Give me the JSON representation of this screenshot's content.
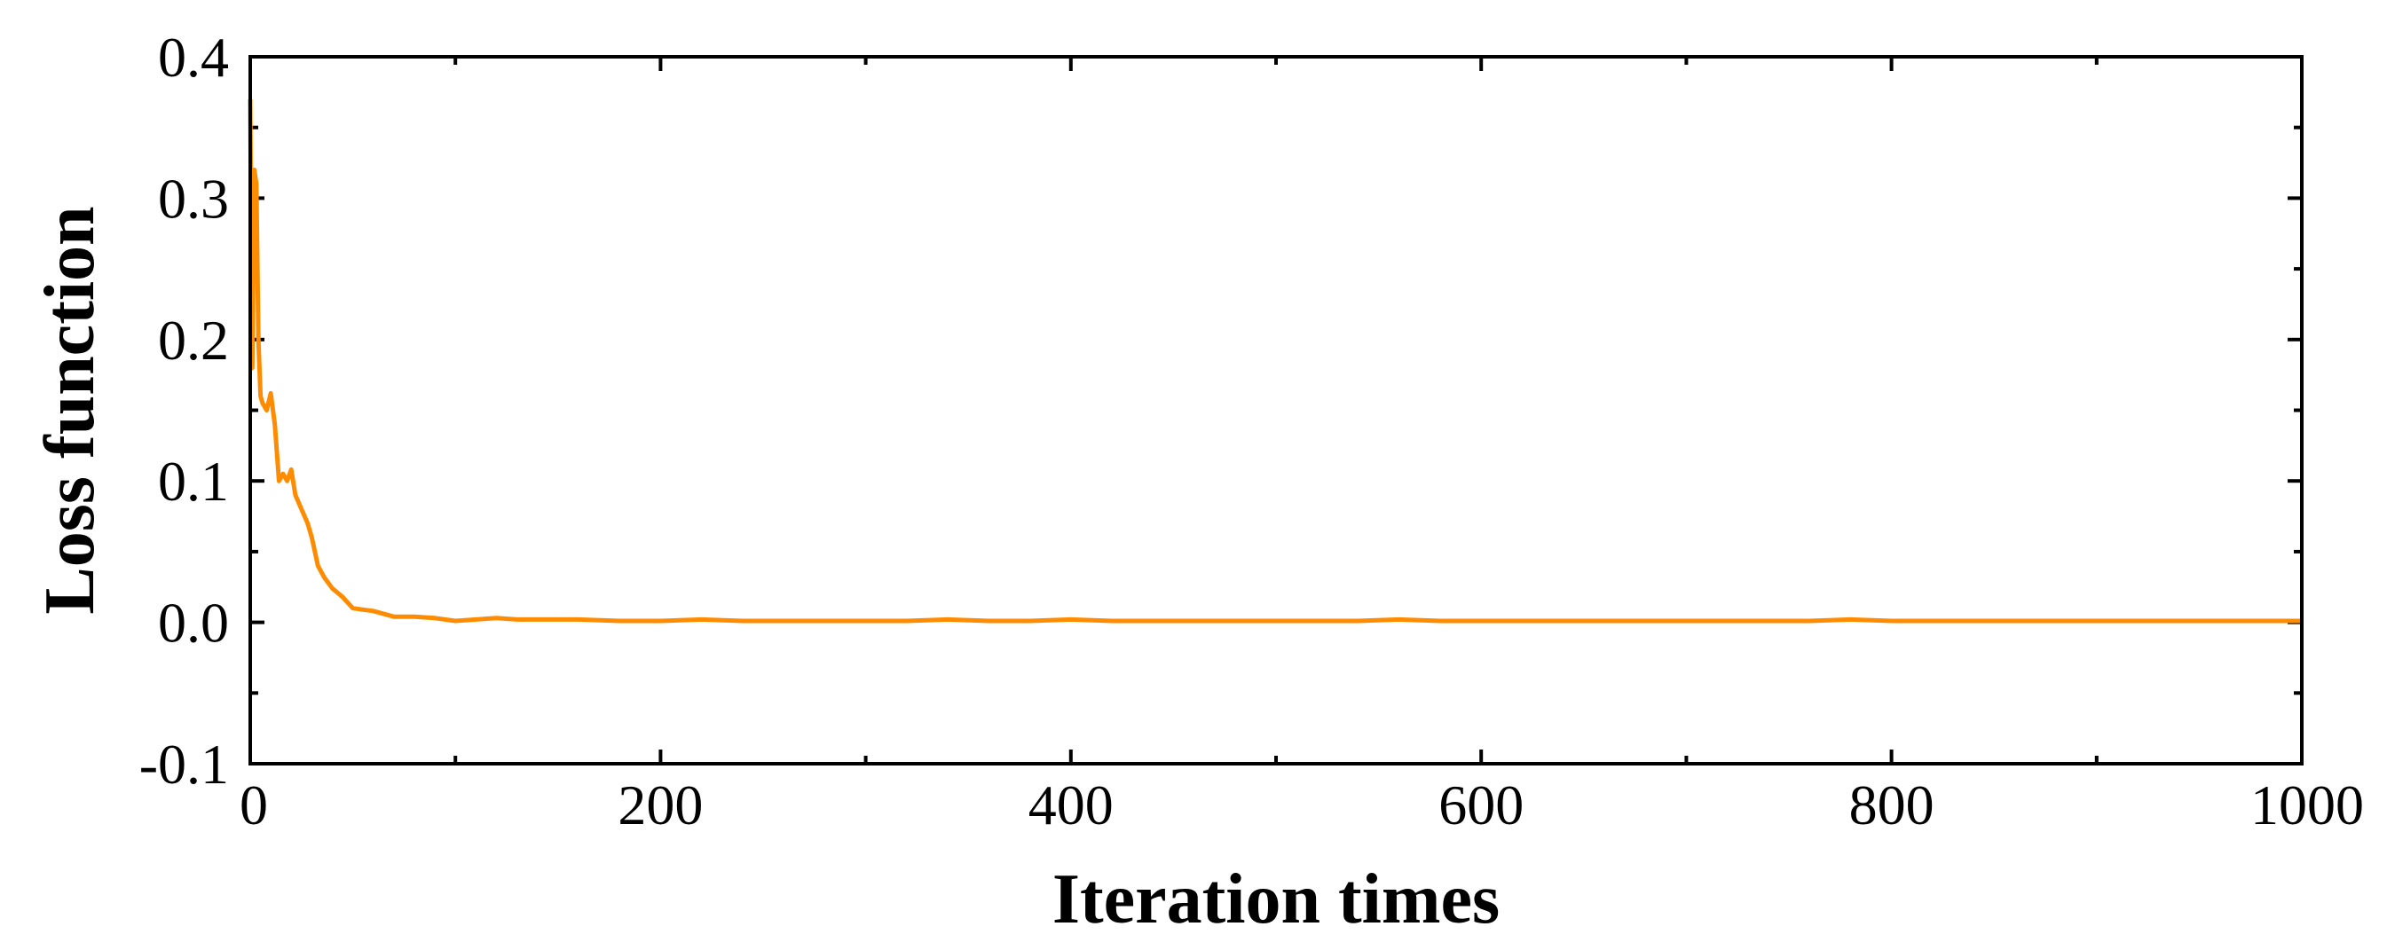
{
  "chart_data": {
    "type": "line",
    "title": "",
    "xlabel": "Iteration times",
    "ylabel": "Loss function",
    "xlim": [
      0,
      1000
    ],
    "ylim": [
      -0.1,
      0.4
    ],
    "xticks": [
      0,
      200,
      400,
      600,
      800,
      1000
    ],
    "xtick_labels": [
      "0",
      "200",
      "400",
      "600",
      "800",
      "1000"
    ],
    "yticks": [
      -0.1,
      0.0,
      0.1,
      0.2,
      0.3,
      0.4
    ],
    "ytick_labels": [
      "-0.1",
      "0.0",
      "0.1",
      "0.2",
      "0.3",
      "0.4"
    ],
    "grid": false,
    "legend": "none",
    "series": [
      {
        "color": "#FF8C00",
        "x": [
          0,
          1,
          2,
          3,
          4,
          5,
          6,
          8,
          10,
          12,
          14,
          16,
          18,
          20,
          22,
          25,
          28,
          30,
          33,
          36,
          40,
          45,
          50,
          55,
          60,
          70,
          80,
          90,
          100,
          110,
          120,
          130,
          140,
          150,
          160,
          180,
          200,
          220,
          240,
          260,
          280,
          300,
          320,
          340,
          360,
          380,
          400,
          420,
          440,
          460,
          480,
          500,
          520,
          540,
          560,
          580,
          600,
          620,
          640,
          660,
          680,
          700,
          720,
          740,
          760,
          780,
          800,
          820,
          840,
          860,
          880,
          900,
          920,
          940,
          960,
          980,
          1000
        ],
        "y": [
          0.37,
          0.18,
          0.32,
          0.31,
          0.2,
          0.16,
          0.155,
          0.15,
          0.162,
          0.14,
          0.1,
          0.105,
          0.1,
          0.108,
          0.09,
          0.08,
          0.07,
          0.06,
          0.04,
          0.032,
          0.024,
          0.018,
          0.01,
          0.009,
          0.008,
          0.004,
          0.004,
          0.003,
          0.001,
          0.002,
          0.003,
          0.002,
          0.002,
          0.002,
          0.002,
          0.001,
          0.001,
          0.002,
          0.001,
          0.001,
          0.001,
          0.001,
          0.001,
          0.002,
          0.001,
          0.001,
          0.002,
          0.001,
          0.001,
          0.001,
          0.001,
          0.001,
          0.001,
          0.001,
          0.002,
          0.001,
          0.001,
          0.001,
          0.001,
          0.001,
          0.001,
          0.001,
          0.001,
          0.001,
          0.001,
          0.002,
          0.001,
          0.001,
          0.001,
          0.001,
          0.001,
          0.001,
          0.001,
          0.001,
          0.001,
          0.001,
          0.001
        ]
      }
    ]
  }
}
